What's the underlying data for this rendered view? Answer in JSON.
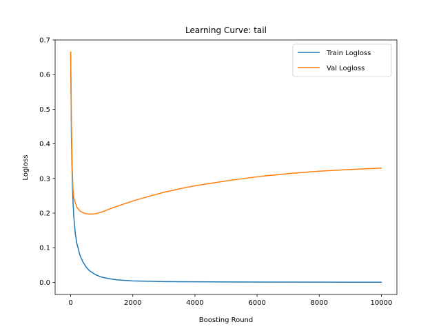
{
  "chart_data": {
    "type": "line",
    "title": "Learning Curve: tail",
    "xlabel": "Boosting Round",
    "ylabel": "Logloss",
    "xlim": [
      -500,
      10500
    ],
    "ylim": [
      -0.035,
      0.7
    ],
    "xticks": [
      0,
      2000,
      4000,
      6000,
      8000,
      10000
    ],
    "yticks": [
      0.0,
      0.1,
      0.2,
      0.3,
      0.4,
      0.5,
      0.6,
      0.7
    ],
    "xtick_labels": [
      "0",
      "2000",
      "4000",
      "6000",
      "8000",
      "10000"
    ],
    "ytick_labels": [
      "0.0",
      "0.1",
      "0.2",
      "0.3",
      "0.4",
      "0.5",
      "0.6",
      "0.7"
    ],
    "grid": false,
    "legend_position": "top-right",
    "series": [
      {
        "name": "Train Logloss",
        "color": "#1f77b4",
        "x": [
          0,
          25,
          50,
          75,
          100,
          150,
          200,
          300,
          400,
          500,
          600,
          800,
          1000,
          1200,
          1500,
          2000,
          2500,
          3000,
          4000,
          5000,
          6000,
          8000,
          10000
        ],
        "y": [
          0.665,
          0.42,
          0.3,
          0.235,
          0.19,
          0.14,
          0.112,
          0.078,
          0.058,
          0.044,
          0.034,
          0.022,
          0.015,
          0.011,
          0.007,
          0.004,
          0.003,
          0.002,
          0.0015,
          0.001,
          0.0008,
          0.0005,
          0.0004
        ]
      },
      {
        "name": "Val Logloss",
        "color": "#ff7f0e",
        "x": [
          0,
          25,
          50,
          75,
          100,
          150,
          200,
          300,
          400,
          500,
          600,
          700,
          800,
          1000,
          1200,
          1500,
          2000,
          2500,
          3000,
          3500,
          4000,
          5000,
          6000,
          7000,
          8000,
          9000,
          10000
        ],
        "y": [
          0.665,
          0.46,
          0.33,
          0.27,
          0.245,
          0.23,
          0.217,
          0.206,
          0.201,
          0.198,
          0.197,
          0.197,
          0.198,
          0.203,
          0.21,
          0.22,
          0.235,
          0.248,
          0.26,
          0.27,
          0.279,
          0.293,
          0.305,
          0.314,
          0.321,
          0.326,
          0.33
        ]
      }
    ]
  }
}
